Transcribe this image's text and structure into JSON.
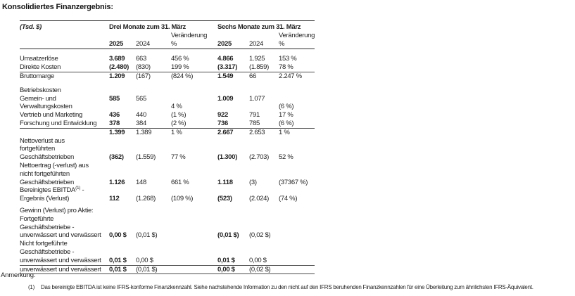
{
  "title": "Konsolidiertes Finanzergebnis:",
  "table": {
    "unit_label": "(Tsd. $)",
    "group_headers": [
      "Drei Monate zum 31. März",
      "Sechs Monate zum 31. März"
    ],
    "change_label": "Veränderung",
    "col_headers": [
      "2025",
      "2024",
      "%",
      "2025",
      "2024",
      "%"
    ],
    "rows": [
      {
        "label": "Umsatzerlöse",
        "cells": [
          "3.689",
          "663",
          "456 %",
          "4.866",
          "1.925",
          "153 %"
        ]
      },
      {
        "label": "Direkte Kosten",
        "cells": [
          "(2.480)",
          "(830)",
          "199 %",
          "(3.317)",
          "(1.859)",
          "78 %"
        ],
        "line_below": true
      },
      {
        "label": "Bruttomarge",
        "indent": 1,
        "cells": [
          "1.209",
          "(167)",
          "(824 %)",
          "1.549",
          "66",
          "2.247 %"
        ]
      },
      {
        "spacer": true,
        "h": 8
      },
      {
        "label": "Betriebskosten",
        "cells": [
          "",
          "",
          "",
          "",
          "",
          ""
        ]
      },
      {
        "label": "Gemein- und",
        "cells": [
          "585",
          "565",
          "",
          "1.009",
          "1.077",
          ""
        ]
      },
      {
        "label": "Verwaltungskosten",
        "cells": [
          "",
          "",
          "4 %",
          "",
          "",
          "(6 %)"
        ]
      },
      {
        "label": "Vertrieb und Marketing",
        "cells": [
          "436",
          "440",
          "(1 %)",
          "922",
          "791",
          "17 %"
        ]
      },
      {
        "label": "Forschung und Entwicklung",
        "cells": [
          "378",
          "384",
          "(2 %)",
          "736",
          "785",
          "(6 %)"
        ],
        "line_below": true
      },
      {
        "label": "",
        "cells": [
          "1.399",
          "1.389",
          "1 %",
          "2.667",
          "2.653",
          "1 %"
        ]
      },
      {
        "label": "Nettoverlust aus",
        "cells": [
          "",
          "",
          "",
          "",
          "",
          ""
        ]
      },
      {
        "label": "fortgeführten",
        "cells": [
          "",
          "",
          "",
          "",
          "",
          ""
        ]
      },
      {
        "label": "Geschäftsbetrieben",
        "cells": [
          "(362)",
          "(1.559)",
          "77 %",
          "(1.300)",
          "(2.703)",
          "52 %"
        ]
      },
      {
        "label": "Nettoertrag (-verlust) aus",
        "cells": [
          "",
          "",
          "",
          "",
          "",
          ""
        ]
      },
      {
        "label": "nicht fortgeführten",
        "cells": [
          "",
          "",
          "",
          "",
          "",
          ""
        ]
      },
      {
        "label": "Geschäftsbetrieben",
        "cells": [
          "1.126",
          "148",
          "661 %",
          "1.118",
          "(3)",
          "(37367 %)"
        ]
      },
      {
        "label": "Bereinigtes EBITDA",
        "label_sup": "(1)",
        "label_suffix": " -",
        "cells": [
          "",
          "",
          "",
          "",
          "",
          ""
        ]
      },
      {
        "label": "Ergebnis (Verlust)",
        "cells": [
          "112",
          "(1.268)",
          "(109 %)",
          "(523)",
          "(2.024)",
          "(74 %)"
        ]
      },
      {
        "spacer": true,
        "h": 5
      },
      {
        "label": "Gewinn (Verlust) pro Aktie:",
        "cells": [
          "",
          "",
          "",
          "",
          "",
          ""
        ]
      },
      {
        "label": "Fortgeführte",
        "cells": [
          "",
          "",
          "",
          "",
          "",
          ""
        ]
      },
      {
        "label": "Geschäftsbetriebe -",
        "cells": [
          "",
          "",
          "",
          "",
          "",
          ""
        ]
      },
      {
        "label": "unverwässert und verwässert",
        "cells": [
          "0,00 $",
          "(0,01 $)",
          "",
          "(0,01 $)",
          "(0,02 $)",
          ""
        ]
      },
      {
        "label": "Nicht fortgeführte",
        "cells": [
          "",
          "",
          "",
          "",
          "",
          ""
        ]
      },
      {
        "label": "Geschäftsbetriebe -",
        "cells": [
          "",
          "",
          "",
          "",
          "",
          ""
        ]
      },
      {
        "label": "unverwässert und verwässert",
        "indent": 1,
        "cells": [
          "0,01 $",
          "0,00 $",
          "",
          "0,01 $",
          "0,00 $",
          ""
        ],
        "line_below": true
      },
      {
        "label": "unverwässert und verwässert",
        "indent": 2,
        "cells": [
          "0,01 $",
          "(0,01 $)",
          "",
          "0,00 $",
          "(0,02 $)",
          ""
        ],
        "line_below": true
      }
    ]
  },
  "note_heading": "Anmerkung:",
  "footnote": {
    "marker": "(1)",
    "text": "Das bereinigte EBITDA ist keine IFRS-konforme Finanzkennzahl. Siehe nachstehende Information zu den nicht auf den IFRS beruhenden Finanzkennzahlen für eine Überleitung zum ähnlichsten IFRS-Äquivalent."
  }
}
